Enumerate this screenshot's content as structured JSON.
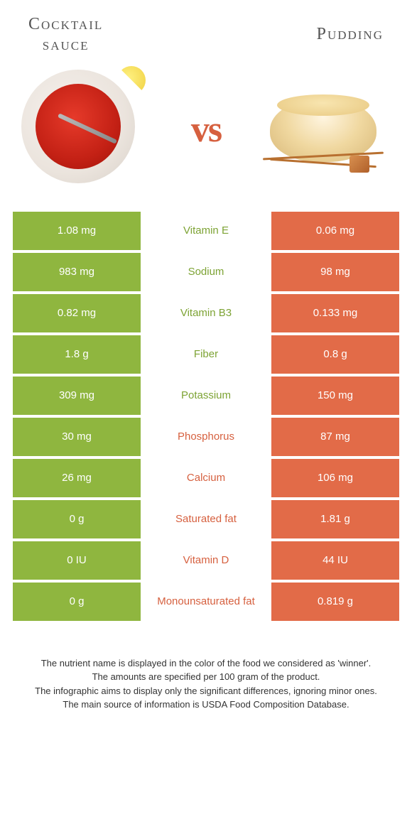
{
  "colors": {
    "left": "#8fb63f",
    "right": "#e26b48",
    "left_label": "#7da334",
    "right_label": "#d6603f",
    "footer_text": "#333333",
    "title_text": "#555555"
  },
  "food_left": {
    "title": "Cocktail\nsauce"
  },
  "food_right": {
    "title": "Pudding"
  },
  "vs_label": "vs",
  "rows": [
    {
      "left": "1.08 mg",
      "label": "Vitamin E",
      "right": "0.06 mg",
      "winner": "left"
    },
    {
      "left": "983 mg",
      "label": "Sodium",
      "right": "98 mg",
      "winner": "left"
    },
    {
      "left": "0.82 mg",
      "label": "Vitamin B3",
      "right": "0.133 mg",
      "winner": "left"
    },
    {
      "left": "1.8 g",
      "label": "Fiber",
      "right": "0.8 g",
      "winner": "left"
    },
    {
      "left": "309 mg",
      "label": "Potassium",
      "right": "150 mg",
      "winner": "left"
    },
    {
      "left": "30 mg",
      "label": "Phosphorus",
      "right": "87 mg",
      "winner": "right"
    },
    {
      "left": "26 mg",
      "label": "Calcium",
      "right": "106 mg",
      "winner": "right"
    },
    {
      "left": "0 g",
      "label": "Saturated fat",
      "right": "1.81 g",
      "winner": "right"
    },
    {
      "left": "0 IU",
      "label": "Vitamin D",
      "right": "44 IU",
      "winner": "right"
    },
    {
      "left": "0 g",
      "label": "Monounsaturated fat",
      "right": "0.819 g",
      "winner": "right"
    }
  ],
  "footer_lines": [
    "The nutrient name is displayed in the color of the food we considered as 'winner'.",
    "The amounts are specified per 100 gram of the product.",
    "The infographic aims to display only the significant differences, ignoring minor ones.",
    "The main source of information is USDA Food Composition Database."
  ]
}
